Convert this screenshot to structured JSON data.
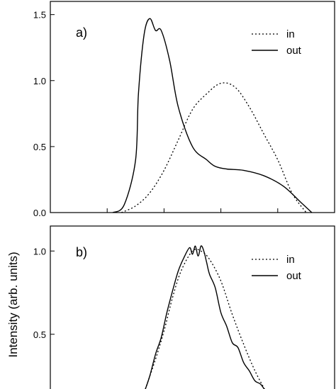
{
  "figure": {
    "ylabel": "Intensity (arb. units)"
  },
  "chart_data": [
    {
      "type": "line",
      "panel_label": "a)",
      "xlabel": "",
      "ylabel": "Intensity (arb. units)",
      "xlim": [
        0,
        1
      ],
      "ylim": [
        0,
        1.6
      ],
      "yticks": [
        0.0,
        0.5,
        1.0,
        1.5
      ],
      "ytick_labels": [
        "0.0",
        "0.5",
        "1.0",
        "1.5"
      ],
      "xticks": [
        0.2,
        0.4,
        0.6,
        0.8
      ],
      "legend_position": "top-right",
      "series": [
        {
          "name": "in",
          "style": "dotted",
          "x": [
            0.25,
            0.3,
            0.35,
            0.4,
            0.45,
            0.5,
            0.55,
            0.6,
            0.65,
            0.7,
            0.75,
            0.8,
            0.85,
            0.9
          ],
          "y": [
            0.0,
            0.05,
            0.15,
            0.32,
            0.55,
            0.78,
            0.9,
            0.98,
            0.95,
            0.8,
            0.6,
            0.4,
            0.15,
            0.0
          ]
        },
        {
          "name": "out",
          "style": "solid",
          "x": [
            0.22,
            0.26,
            0.3,
            0.31,
            0.33,
            0.35,
            0.37,
            0.39,
            0.42,
            0.45,
            0.5,
            0.55,
            0.58,
            0.62,
            0.68,
            0.75,
            0.82,
            0.88,
            0.92
          ],
          "y": [
            0.0,
            0.06,
            0.4,
            0.9,
            1.35,
            1.47,
            1.38,
            1.38,
            1.15,
            0.8,
            0.5,
            0.4,
            0.35,
            0.33,
            0.32,
            0.28,
            0.2,
            0.08,
            0.0
          ]
        }
      ]
    },
    {
      "type": "line",
      "panel_label": "b)",
      "xlabel": "",
      "ylabel": "Intensity (arb. units)",
      "xlim": [
        0,
        1
      ],
      "ylim": [
        0.15,
        1.15
      ],
      "yticks": [
        0.5,
        1.0
      ],
      "ytick_labels": [
        "0.5",
        "1.0"
      ],
      "legend_position": "top-right",
      "series": [
        {
          "name": "in",
          "style": "dotted",
          "x": [
            0.33,
            0.37,
            0.4,
            0.43,
            0.46,
            0.5,
            0.53,
            0.56,
            0.6,
            0.64,
            0.68,
            0.72,
            0.76
          ],
          "y": [
            0.15,
            0.35,
            0.52,
            0.72,
            0.88,
            1.0,
            1.0,
            0.95,
            0.82,
            0.62,
            0.44,
            0.28,
            0.15
          ]
        },
        {
          "name": "out",
          "style": "solid",
          "x": [
            0.33,
            0.35,
            0.37,
            0.39,
            0.41,
            0.43,
            0.45,
            0.47,
            0.49,
            0.5,
            0.51,
            0.52,
            0.53,
            0.54,
            0.55,
            0.56,
            0.58,
            0.6,
            0.62,
            0.64,
            0.66,
            0.68,
            0.7,
            0.72,
            0.74,
            0.76
          ],
          "y": [
            0.15,
            0.25,
            0.38,
            0.48,
            0.63,
            0.76,
            0.88,
            0.96,
            1.02,
            0.98,
            1.03,
            0.97,
            1.03,
            1.0,
            0.93,
            0.86,
            0.78,
            0.63,
            0.55,
            0.45,
            0.42,
            0.33,
            0.28,
            0.22,
            0.2,
            0.15
          ]
        }
      ]
    }
  ]
}
